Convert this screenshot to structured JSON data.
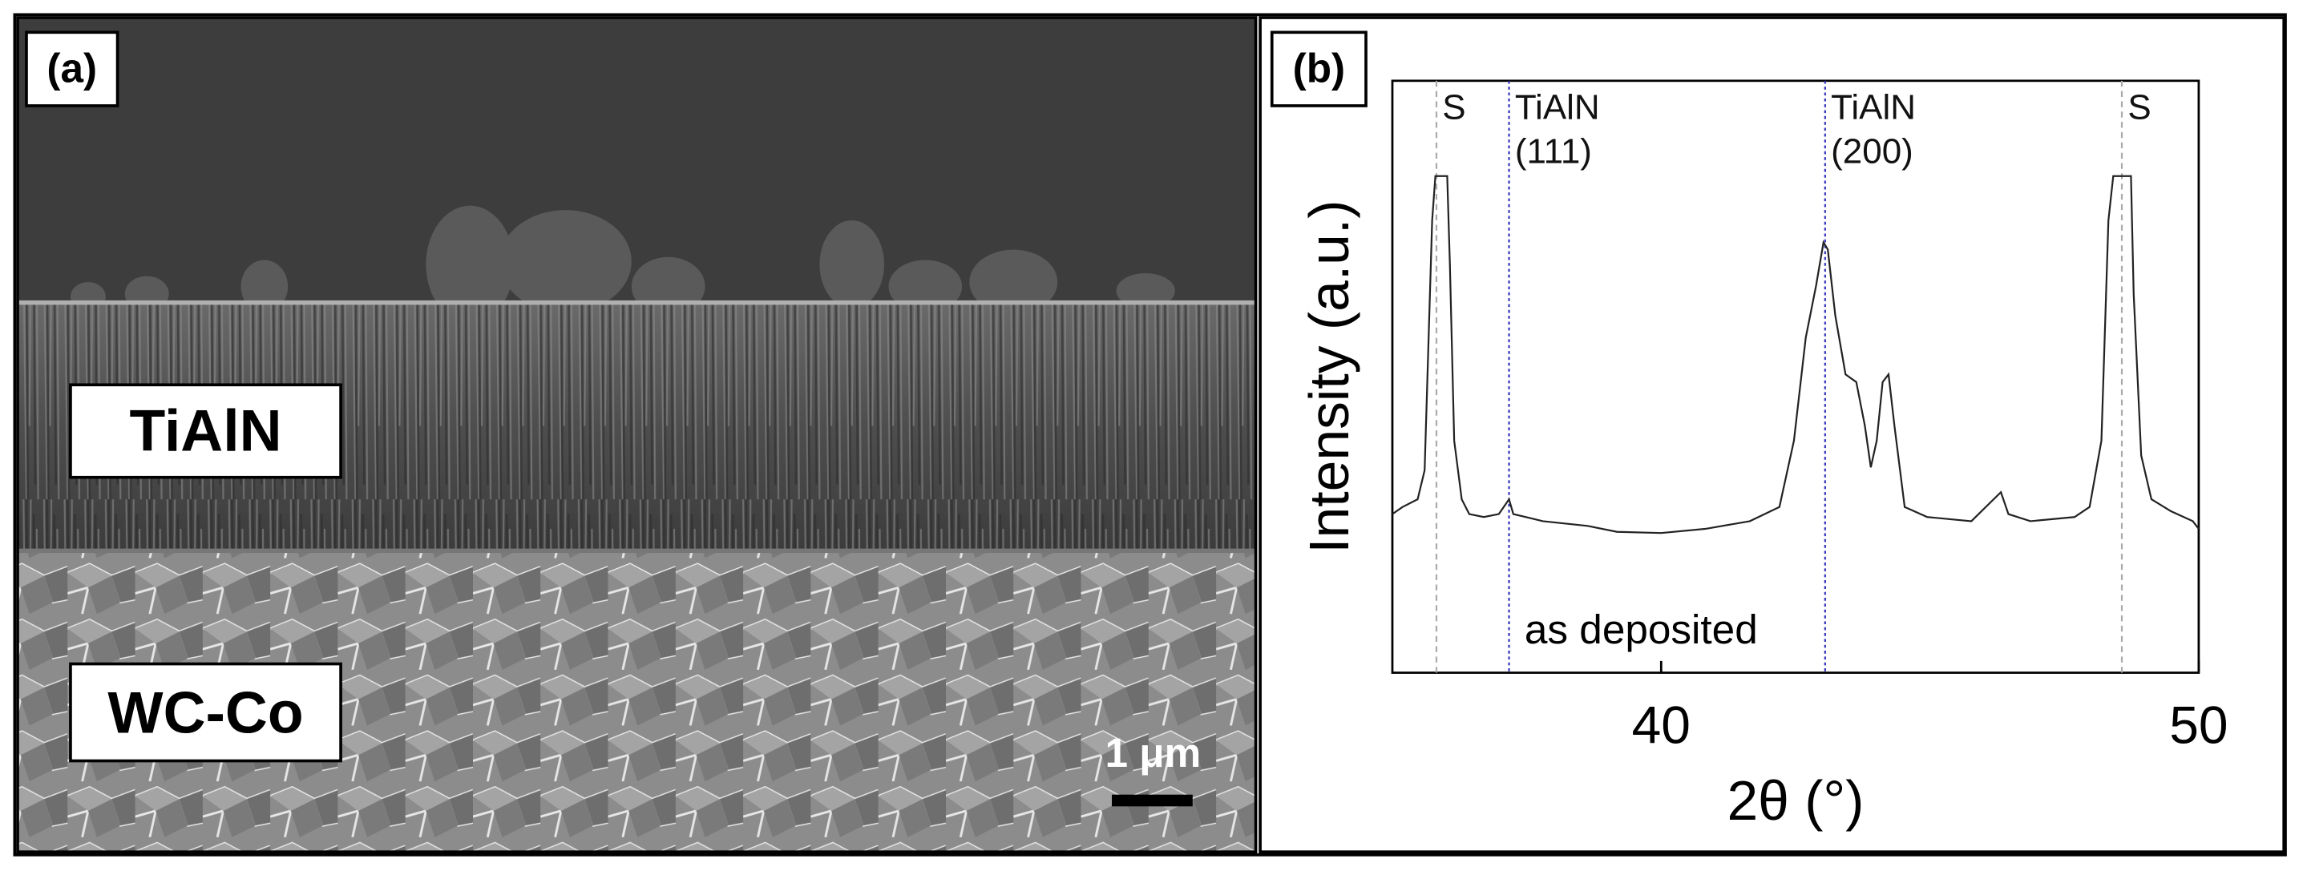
{
  "panel_a": {
    "label": "(a)",
    "layers": [
      "TiAlN",
      "WC-Co"
    ],
    "scale_bar": "1 μm"
  },
  "chart_data": {
    "type": "line",
    "panel_label": "(b)",
    "xlabel": "2θ (°)",
    "ylabel": "Intensity (a.u.)",
    "xlim": [
      35,
      50
    ],
    "xticks": [
      40,
      50
    ],
    "ylim": [
      0,
      100
    ],
    "x": [
      35.0,
      35.19,
      35.47,
      35.6,
      35.74,
      35.8,
      36.02,
      36.07,
      36.15,
      36.29,
      36.43,
      36.7,
      36.98,
      37.17,
      37.25,
      37.8,
      38.63,
      39.18,
      40.0,
      40.82,
      41.65,
      42.2,
      42.47,
      42.69,
      42.88,
      43.02,
      43.1,
      43.24,
      43.43,
      43.63,
      43.79,
      43.9,
      44.01,
      44.12,
      44.23,
      44.34,
      44.53,
      44.95,
      45.77,
      46.32,
      46.46,
      46.87,
      47.69,
      47.97,
      48.19,
      48.32,
      48.41,
      48.74,
      48.79,
      48.93,
      49.12,
      49.48,
      49.89,
      50.0
    ],
    "series": [
      {
        "color": "#222222",
        "values": [
          26.8,
          28.0,
          29.3,
          34.2,
          76.4,
          83.9,
          83.9,
          69.0,
          39.2,
          29.3,
          26.8,
          26.3,
          26.8,
          29.3,
          26.8,
          25.6,
          24.8,
          23.8,
          23.6,
          24.3,
          25.6,
          28.0,
          39.2,
          56.6,
          65.3,
          72.7,
          71.5,
          60.3,
          50.4,
          49.1,
          41.7,
          34.7,
          39.2,
          49.1,
          50.4,
          41.7,
          28.0,
          26.3,
          25.6,
          30.5,
          26.8,
          25.6,
          26.3,
          28.0,
          39.2,
          76.4,
          83.9,
          83.9,
          64.0,
          36.7,
          29.3,
          27.3,
          25.6,
          24.3
        ]
      }
    ],
    "reference_lines": [
      {
        "x": 35.82,
        "color": "#aaaaaa",
        "dash": "4 3",
        "label": [
          "S"
        ]
      },
      {
        "x": 37.17,
        "color": "#3333bb",
        "dash": "2 2",
        "label": [
          "TiAlN",
          "(111)"
        ]
      },
      {
        "x": 43.05,
        "color": "#3333bb",
        "dash": "2 2",
        "label": [
          "TiAlN",
          "(200)"
        ]
      },
      {
        "x": 48.57,
        "color": "#aaaaaa",
        "dash": "4 3",
        "label": [
          "S"
        ]
      }
    ],
    "annotation": "as deposited"
  }
}
